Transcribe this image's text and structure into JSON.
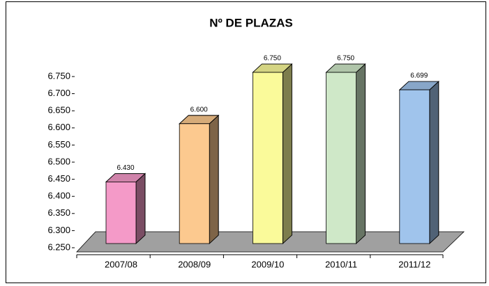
{
  "chart_data": {
    "type": "bar3d",
    "title": "Nº DE PLAZAS",
    "categories": [
      "2007/08",
      "2008/09",
      "2009/10",
      "2010/11",
      "2011/12"
    ],
    "values": [
      6430,
      6600,
      6750,
      6750,
      6699
    ],
    "value_labels": [
      "6.430",
      "6.600",
      "6.750",
      "6.750",
      "6.699"
    ],
    "colors": [
      "#f49ac8",
      "#fcc98f",
      "#fafa9a",
      "#cfe8c8",
      "#a0c4ec"
    ],
    "ylim": [
      6250,
      6750
    ],
    "yticks": [
      {
        "value": 6250,
        "label": "6.250"
      },
      {
        "value": 6300,
        "label": "6.300"
      },
      {
        "value": 6350,
        "label": "6.350"
      },
      {
        "value": 6400,
        "label": "6.400"
      },
      {
        "value": 6450,
        "label": "6.450"
      },
      {
        "value": 6500,
        "label": "6.500"
      },
      {
        "value": 6550,
        "label": "6.550"
      },
      {
        "value": 6600,
        "label": "6.600"
      },
      {
        "value": 6650,
        "label": "6.650"
      },
      {
        "value": 6700,
        "label": "6.700"
      },
      {
        "value": 6750,
        "label": "6.750"
      }
    ]
  }
}
